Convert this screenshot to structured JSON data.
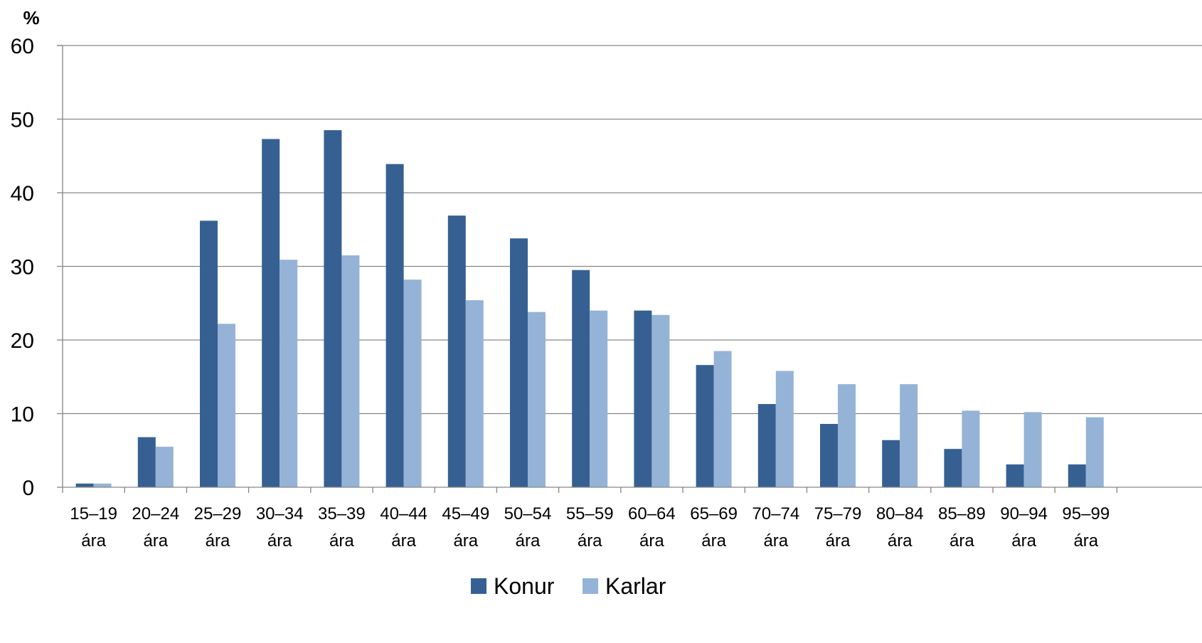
{
  "chart_data": {
    "type": "bar",
    "ylabel": "%",
    "ylim": [
      0,
      60
    ],
    "yticks": [
      0,
      10,
      20,
      30,
      40,
      50,
      60
    ],
    "grid": true,
    "legend_position": "bottom",
    "categories": [
      [
        "15–19",
        "ára"
      ],
      [
        "20–24",
        "ára"
      ],
      [
        "25–29",
        "ára"
      ],
      [
        "30–34",
        "ára"
      ],
      [
        "35–39",
        "ára"
      ],
      [
        "40–44",
        "ára"
      ],
      [
        "45–49",
        "ára"
      ],
      [
        "50–54",
        "ára"
      ],
      [
        "55–59",
        "ára"
      ],
      [
        "60–64",
        "ára"
      ],
      [
        "65–69",
        "ára"
      ],
      [
        "70–74",
        "ára"
      ],
      [
        "75–79",
        "ára"
      ],
      [
        "80–84",
        "ára"
      ],
      [
        "85–89",
        "ára"
      ],
      [
        "90–94",
        "ára"
      ],
      [
        "95–99",
        "ára"
      ]
    ],
    "series": [
      {
        "name": "Konur",
        "color": "#366092",
        "values": [
          0.5,
          6.8,
          36.2,
          47.3,
          48.5,
          43.9,
          36.9,
          33.8,
          29.5,
          24.0,
          16.6,
          11.3,
          8.6,
          6.4,
          5.2,
          3.1,
          3.1
        ]
      },
      {
        "name": "Karlar",
        "color": "#95b3d7",
        "values": [
          0.5,
          5.5,
          22.2,
          30.9,
          31.5,
          28.2,
          25.4,
          23.8,
          24.0,
          23.4,
          18.5,
          15.8,
          14.0,
          14.0,
          10.4,
          10.2,
          9.5
        ]
      }
    ]
  }
}
